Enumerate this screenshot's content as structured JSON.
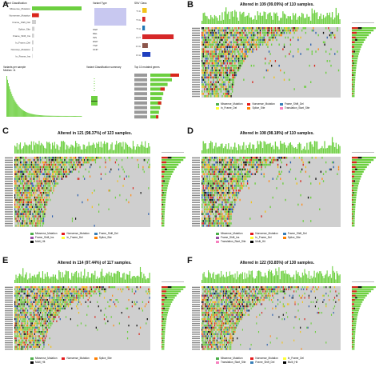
{
  "panels": {
    "A": {
      "label": "A"
    },
    "B": {
      "label": "B",
      "title": "Altered in 109 (99.09%) of 110 samples."
    },
    "C": {
      "label": "C",
      "title": "Altered in 121 (98.37%) of 123 samples."
    },
    "D": {
      "label": "D",
      "title": "Altered in 108 (98.18%) of 110 samples."
    },
    "E": {
      "label": "E",
      "title": "Altered in 114 (97.44%) of 117 samples."
    },
    "F": {
      "label": "F",
      "title": "Altered in 122 (93.85%) of 130 samples."
    }
  },
  "panel_a": {
    "variant_classification": [
      "Missense_Mutation",
      "Nonsense_Mutation",
      "Frame_Shift_Del",
      "Splice_Site",
      "Frame_Shift_Ins",
      "In_Frame_Del",
      "Nonstop_Mutation",
      "In_Frame_Ins"
    ],
    "variant_type": [
      "SNP",
      "DEL",
      "INS",
      "DNP",
      "TNP",
      "ONP"
    ],
    "snv_class": [
      "T>C",
      "T>G",
      "T>A",
      "C>T",
      "C>G",
      "C>A"
    ],
    "label_variants_per_sample": "Variants per sample",
    "label_median": "Median: 11",
    "label_variant_classification_summary": "Variant Classification summary",
    "label_top_genes": "Top 10 mutated genes"
  },
  "legends": {
    "B": [
      "Missense_Mutation",
      "Nonsense_Mutation",
      "Frame_Shift_Del",
      "In_Frame_Del",
      "Splice_Site",
      "Translation_Start_Site"
    ],
    "C": [
      "Missense_Mutation",
      "Nonsense_Mutation",
      "Frame_Shift_Del",
      "Frame_Shift_Ins",
      "In_Frame_Del",
      "Splice_Site",
      "Multi_Hit"
    ],
    "D": [
      "Missense_Mutation",
      "Nonsense_Mutation",
      "Frame_Shift_Del",
      "Frame_Shift_Ins",
      "In_Frame_Del",
      "Splice_Site",
      "Translation_Start_Site",
      "Multi_Hit"
    ],
    "E": [
      "Missense_Mutation",
      "Nonsense_Mutation",
      "Splice_Site",
      "Multi_Hit"
    ],
    "F": [
      "Missense_Mutation",
      "Nonsense_Mutation",
      "In_Frame_Del",
      "Translation_Start_Site",
      "Frame_Shift_Del",
      "Multi_Hit"
    ]
  },
  "legend_colors": {
    "Missense_Mutation": "#4daf4a",
    "Nonsense_Mutation": "#e41a1c",
    "Frame_Shift_Del": "#377eb8",
    "Frame_Shift_Ins": "#984ea3",
    "In_Frame_Del": "#ffff33",
    "In_Frame_Ins": "#a65628",
    "Splice_Site": "#ff7f00",
    "Translation_Start_Site": "#f781bf",
    "Nonstop_Mutation": "#999999",
    "Multi_Hit": "#000000"
  },
  "colors": {
    "missense": "#6ccf3f",
    "nonsense": "#d9261c",
    "frameshift_del": "#2b5fae",
    "frameshift_ins": "#8e44ad",
    "inframe": "#f2c21a",
    "splice": "#ff8c1a",
    "multi": "#111111",
    "background": "#cfcfcf",
    "blue_bar": "#1f3fbf",
    "red_bar": "#d62728",
    "lavender": "#c8c8f0"
  }
}
